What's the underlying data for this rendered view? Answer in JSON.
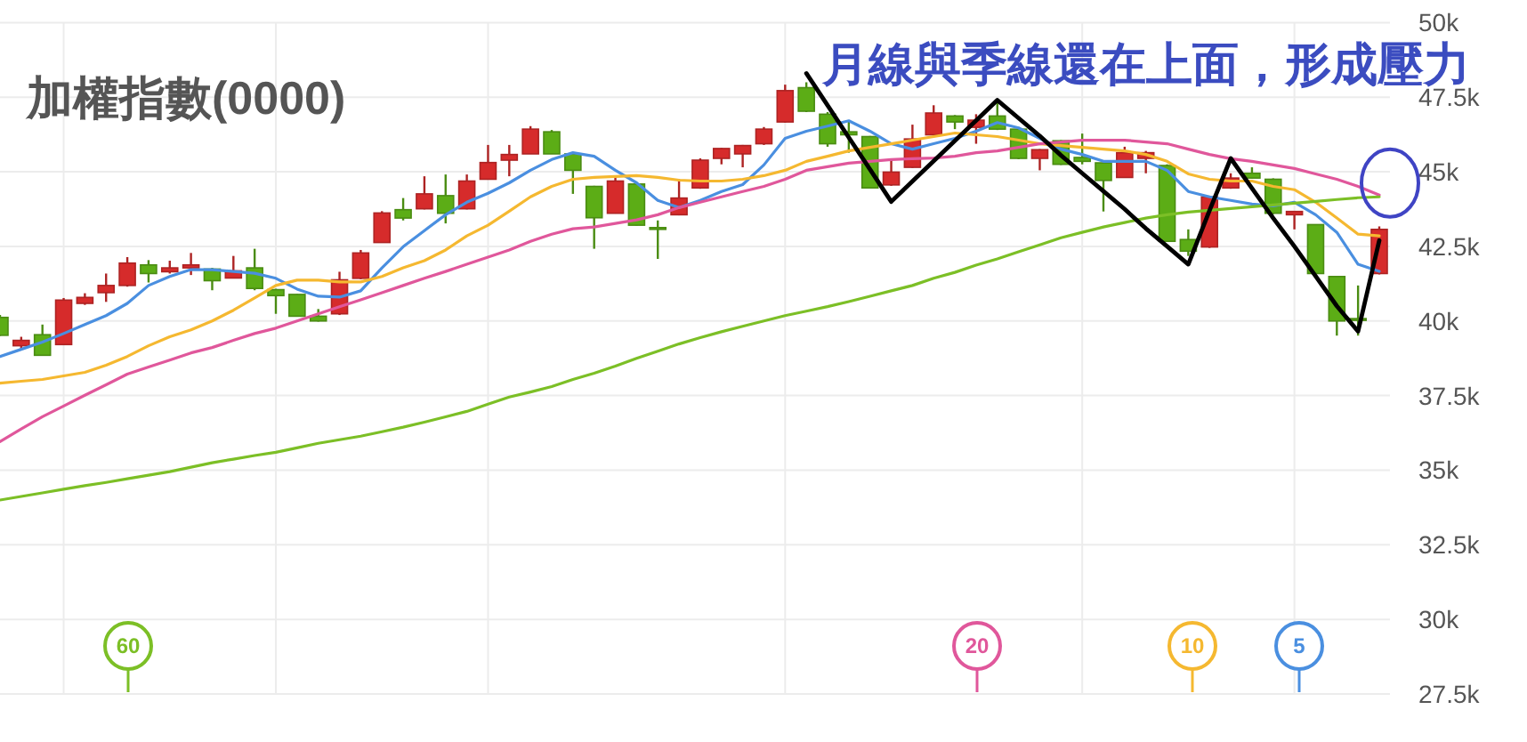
{
  "chart_data": {
    "type": "candlestick",
    "title": "加權指數(0000)",
    "annotations": [
      "月線與季線還在上面，形成壓力"
    ],
    "categories": [
      null,
      null,
      null,
      null,
      null,
      null,
      null,
      null,
      null,
      null,
      null,
      null,
      null,
      null,
      null,
      null,
      null,
      null,
      null,
      null,
      null,
      null,
      null,
      null,
      null,
      null,
      null,
      null,
      null,
      null,
      null,
      null,
      null,
      null,
      null,
      null,
      null,
      null,
      null,
      null,
      null,
      null,
      null,
      null,
      null,
      null,
      null,
      null,
      null,
      null,
      null,
      null,
      null,
      null,
      null,
      null,
      null,
      null,
      null,
      null,
      null,
      null,
      null,
      null,
      null,
      null
    ],
    "ylim": [
      27500,
      50000
    ],
    "yticks": [
      {
        "value": 27500,
        "label": "27.5k"
      },
      {
        "value": 30000,
        "label": "30k"
      },
      {
        "value": 32500,
        "label": "32.5k"
      },
      {
        "value": 35000,
        "label": "35k"
      },
      {
        "value": 37500,
        "label": "37.5k"
      },
      {
        "value": 40000,
        "label": "40k"
      },
      {
        "value": 42500,
        "label": "42.5k"
      },
      {
        "value": 45000,
        "label": "45k"
      },
      {
        "value": 47500,
        "label": "47.5k"
      },
      {
        "value": 50000,
        "label": "50k"
      }
    ],
    "tick_labels": "y",
    "grid": true,
    "legend": "bottom",
    "ohlc": [
      [
        40120,
        40200,
        39500,
        39520
      ],
      [
        39170,
        39470,
        39050,
        39350
      ],
      [
        39540,
        39880,
        38850,
        38850
      ],
      [
        39210,
        40770,
        39200,
        40700
      ],
      [
        40590,
        40930,
        40540,
        40790
      ],
      [
        40950,
        41590,
        40640,
        41190
      ],
      [
        41190,
        42140,
        41150,
        41940
      ],
      [
        41880,
        42040,
        41290,
        41590
      ],
      [
        41650,
        42020,
        41590,
        41780
      ],
      [
        41780,
        42280,
        41540,
        41880
      ],
      [
        41740,
        41780,
        41030,
        41350
      ],
      [
        41440,
        42180,
        41440,
        41680
      ],
      [
        41780,
        42420,
        41030,
        41090
      ],
      [
        41050,
        41080,
        40240,
        40850
      ],
      [
        40890,
        40900,
        40160,
        40160
      ],
      [
        40160,
        40400,
        39980,
        40000
      ],
      [
        40240,
        41650,
        40200,
        41380
      ],
      [
        41430,
        42380,
        41400,
        42280
      ],
      [
        42630,
        43680,
        42630,
        43620
      ],
      [
        43730,
        44120,
        43370,
        43450
      ],
      [
        43760,
        44850,
        43740,
        44260
      ],
      [
        44200,
        44910,
        43270,
        43610
      ],
      [
        43760,
        44910,
        43740,
        44690
      ],
      [
        44750,
        45900,
        44740,
        45310
      ],
      [
        45390,
        45900,
        44850,
        45580
      ],
      [
        45600,
        46530,
        45600,
        46430
      ],
      [
        46340,
        46400,
        45600,
        45600
      ],
      [
        45600,
        45620,
        44260,
        45050
      ],
      [
        44510,
        44530,
        42420,
        43460
      ],
      [
        43610,
        44850,
        43600,
        44690
      ],
      [
        44590,
        44650,
        43200,
        43210
      ],
      [
        43130,
        43370,
        42080,
        43110
      ],
      [
        43560,
        44750,
        43540,
        44120
      ],
      [
        44460,
        45450,
        44430,
        45390
      ],
      [
        45450,
        45800,
        45250,
        45780
      ],
      [
        45600,
        45900,
        45150,
        45880
      ],
      [
        45940,
        46500,
        45900,
        46430
      ],
      [
        46670,
        47920,
        46650,
        47720
      ],
      [
        47820,
        48000,
        47000,
        47030
      ],
      [
        46930,
        47000,
        45840,
        45940
      ],
      [
        46340,
        46730,
        45640,
        46240
      ],
      [
        46180,
        46200,
        44450,
        44460
      ],
      [
        44560,
        45450,
        44530,
        44990
      ],
      [
        45150,
        46580,
        45130,
        46100
      ],
      [
        46240,
        47230,
        46220,
        46970
      ],
      [
        46870,
        46900,
        46430,
        46670
      ],
      [
        46490,
        46930,
        45940,
        46730
      ],
      [
        46870,
        47320,
        46400,
        46430
      ],
      [
        46430,
        46500,
        45420,
        45450
      ],
      [
        45450,
        45760,
        45050,
        45740
      ],
      [
        46040,
        46060,
        45230,
        45250
      ],
      [
        45480,
        46280,
        45250,
        45350
      ],
      [
        45300,
        45310,
        43670,
        44710
      ],
      [
        44810,
        45840,
        44800,
        45640
      ],
      [
        45450,
        45700,
        44950,
        45640
      ],
      [
        45210,
        45250,
        42650,
        42670
      ],
      [
        42730,
        43070,
        42180,
        42340
      ],
      [
        42480,
        44200,
        42450,
        44160
      ],
      [
        44460,
        44950,
        44430,
        44790
      ],
      [
        44950,
        45150,
        44780,
        44790
      ],
      [
        44750,
        44780,
        43580,
        43610
      ],
      [
        43560,
        43680,
        43070,
        43670
      ],
      [
        43230,
        43240,
        41560,
        41590
      ],
      [
        41490,
        41500,
        39510,
        40000
      ],
      [
        40080,
        41190,
        39510,
        40040
      ],
      [
        41590,
        43170,
        41560,
        43070
      ]
    ],
    "colors": [
      "#5cad16",
      "#d62b2b",
      "#5cad16",
      "#d62b2b",
      "#d62b2b",
      "#d62b2b",
      "#d62b2b",
      "#5cad16",
      "#d62b2b",
      "#d62b2b",
      "#5cad16",
      "#d62b2b",
      "#5cad16",
      "#5cad16",
      "#5cad16",
      "#5cad16",
      "#d62b2b",
      "#d62b2b",
      "#d62b2b",
      "#5cad16",
      "#d62b2b",
      "#5cad16",
      "#d62b2b",
      "#d62b2b",
      "#d62b2b",
      "#d62b2b",
      "#5cad16",
      "#5cad16",
      "#5cad16",
      "#d62b2b",
      "#5cad16",
      "#5cad16",
      "#d62b2b",
      "#d62b2b",
      "#d62b2b",
      "#d62b2b",
      "#d62b2b",
      "#d62b2b",
      "#5cad16",
      "#5cad16",
      "#5cad16",
      "#5cad16",
      "#d62b2b",
      "#d62b2b",
      "#d62b2b",
      "#5cad16",
      "#d62b2b",
      "#5cad16",
      "#5cad16",
      "#d62b2b",
      "#5cad16",
      "#5cad16",
      "#5cad16",
      "#d62b2b",
      "#d62b2b",
      "#5cad16",
      "#5cad16",
      "#d62b2b",
      "#d62b2b",
      "#5cad16",
      "#5cad16",
      "#d62b2b",
      "#5cad16",
      "#5cad16",
      "#5cad16",
      "#d62b2b"
    ],
    "series": [
      {
        "type": "line",
        "name": "5",
        "color": "#4a8fe0",
        "values": [
          38810,
          39050,
          39290,
          39580,
          39880,
          40180,
          40590,
          41190,
          41490,
          41720,
          41720,
          41660,
          41600,
          41430,
          41070,
          40830,
          40800,
          41010,
          41780,
          42490,
          43030,
          43560,
          43980,
          44280,
          44630,
          45050,
          45410,
          45640,
          45520,
          45050,
          44630,
          44040,
          43800,
          44040,
          44340,
          44570,
          45230,
          46120,
          46360,
          46530,
          46710,
          46360,
          45940,
          45760,
          45940,
          46120,
          46360,
          46650,
          46470,
          46120,
          45760,
          45580,
          45350,
          45350,
          45350,
          45050,
          44340,
          44160,
          44040,
          43920,
          43860,
          43980,
          43560,
          42970,
          41900,
          41660
        ]
      },
      {
        "type": "line",
        "name": "10",
        "color": "#f5b830",
        "values": [
          37920,
          37980,
          38040,
          38160,
          38280,
          38520,
          38810,
          39170,
          39470,
          39700,
          40000,
          40360,
          40770,
          41190,
          41370,
          41370,
          41310,
          41310,
          41490,
          41780,
          42020,
          42380,
          42850,
          43210,
          43680,
          44160,
          44510,
          44750,
          44810,
          44840,
          44870,
          44810,
          44720,
          44690,
          44690,
          44750,
          44870,
          45050,
          45350,
          45520,
          45700,
          45820,
          45940,
          46060,
          46180,
          46300,
          46240,
          46180,
          46060,
          45940,
          45880,
          45820,
          45760,
          45700,
          45580,
          45350,
          44930,
          44750,
          44690,
          44690,
          44510,
          44400,
          43980,
          43450,
          42910,
          42850
        ]
      },
      {
        "type": "line",
        "name": "20",
        "color": "#e0579b",
        "values": [
          35960,
          36380,
          36790,
          37150,
          37510,
          37860,
          38220,
          38460,
          38690,
          38930,
          39110,
          39350,
          39580,
          39760,
          40000,
          40240,
          40480,
          40710,
          40950,
          41190,
          41430,
          41660,
          41900,
          42140,
          42380,
          42670,
          42910,
          43090,
          43150,
          43270,
          43390,
          43560,
          43800,
          43980,
          44160,
          44340,
          44510,
          44750,
          45050,
          45170,
          45290,
          45350,
          45410,
          45440,
          45460,
          45520,
          45640,
          45700,
          45820,
          45940,
          46000,
          46060,
          46060,
          46060,
          46000,
          45940,
          45760,
          45580,
          45440,
          45350,
          45230,
          45110,
          44930,
          44750,
          44510,
          44220
        ]
      },
      {
        "type": "line",
        "name": "60",
        "color": "#7cbf26",
        "values": [
          34000,
          34120,
          34240,
          34360,
          34480,
          34590,
          34710,
          34830,
          34950,
          35100,
          35250,
          35370,
          35490,
          35600,
          35750,
          35900,
          36020,
          36140,
          36290,
          36440,
          36610,
          36790,
          36970,
          37210,
          37450,
          37620,
          37800,
          38040,
          38250,
          38490,
          38750,
          38990,
          39230,
          39440,
          39640,
          39820,
          40000,
          40180,
          40330,
          40480,
          40650,
          40830,
          41010,
          41190,
          41430,
          41630,
          41870,
          42080,
          42320,
          42550,
          42790,
          42970,
          43150,
          43300,
          43450,
          43560,
          43650,
          43710,
          43770,
          43830,
          43890,
          43950,
          44010,
          44070,
          44130,
          44160
        ]
      },
      {
        "type": "line",
        "color": "#000000",
        "values": [
          null,
          null,
          null,
          null,
          null,
          null,
          null,
          null,
          null,
          null,
          null,
          null,
          null,
          null,
          null,
          null,
          null,
          null,
          null,
          null,
          null,
          null,
          null,
          null,
          null,
          null,
          null,
          null,
          null,
          null,
          null,
          null,
          null,
          null,
          null,
          null,
          null,
          null,
          48300,
          47230,
          46150,
          45080,
          44000,
          44680,
          45360,
          46040,
          46720,
          47400,
          46800,
          46200,
          45550,
          44950,
          44350,
          43750,
          43100,
          42500,
          41900,
          43700,
          45450,
          44450,
          43450,
          42500,
          41500,
          40500,
          39650,
          42700
        ]
      }
    ]
  }
}
